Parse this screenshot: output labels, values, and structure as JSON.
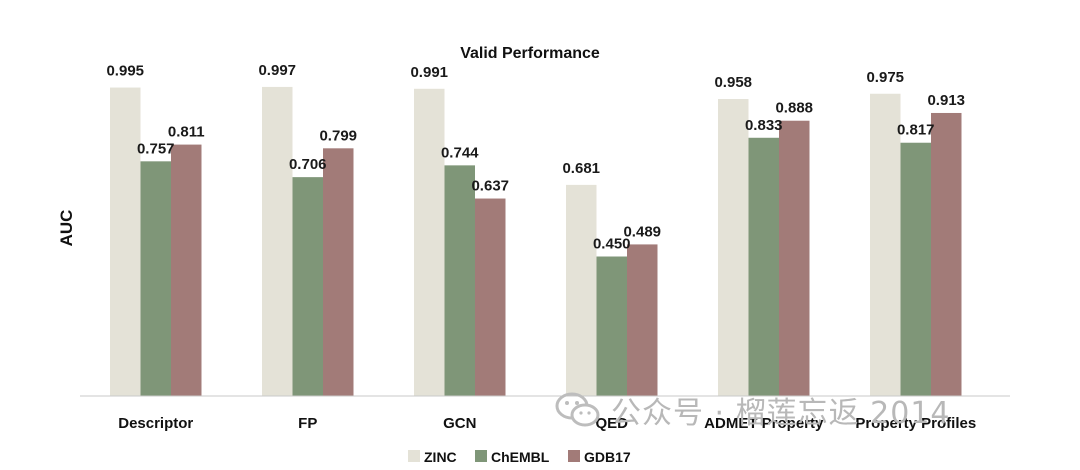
{
  "chart_data": {
    "type": "bar",
    "title": "Valid Performance",
    "xlabel": "",
    "ylabel": "AUC",
    "ylim": [
      0,
      1.0
    ],
    "grid": false,
    "legend_position": "bottom",
    "categories": [
      "Descriptor",
      "FP",
      "GCN",
      "QED",
      "ADMET Property",
      "Property Profiles"
    ],
    "series": [
      {
        "name": "ZINC",
        "color": "#e4e2d7",
        "values": [
          0.995,
          0.997,
          0.991,
          0.681,
          0.958,
          0.975
        ],
        "labels": [
          "0.995",
          "0.997",
          "0.991",
          "0.681",
          "0.958",
          "0.975"
        ]
      },
      {
        "name": "ChEMBL",
        "color": "#7f9678",
        "values": [
          0.757,
          0.706,
          0.744,
          0.45,
          0.833,
          0.817
        ],
        "labels": [
          "0.757",
          "0.706",
          "0.744",
          "0.450",
          "0.833",
          "0.817"
        ]
      },
      {
        "name": "GDB17",
        "color": "#a27b78",
        "values": [
          0.811,
          0.799,
          0.637,
          0.489,
          0.888,
          0.913
        ],
        "labels": [
          "0.811",
          "0.799",
          "0.637",
          "0.489",
          "0.888",
          "0.913"
        ]
      }
    ]
  },
  "watermark": {
    "text": "公众号 · 榴莲忘返 2014",
    "icon": "wechat-icon"
  }
}
